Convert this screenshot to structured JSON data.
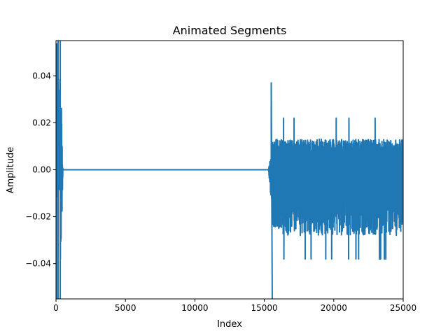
{
  "chart_data": {
    "type": "line",
    "title": "Animated Segments",
    "xlabel": "Index",
    "ylabel": "Amplitude",
    "xlim": [
      0,
      25000
    ],
    "ylim": [
      -0.055,
      0.055
    ],
    "xticks": [
      0,
      5000,
      10000,
      15000,
      20000,
      25000
    ],
    "xtick_labels": [
      "0",
      "5000",
      "10000",
      "15000",
      "20000",
      "25000"
    ],
    "yticks": [
      -0.04,
      -0.02,
      0.0,
      0.02,
      0.04
    ],
    "ytick_labels": [
      "−0.04",
      "−0.02",
      "0.00",
      "0.02",
      "0.04"
    ],
    "grid": false,
    "legend": "none",
    "color": "#1f77b4",
    "series": [
      {
        "segments": [
          {
            "x_start": 0,
            "x_end": 500,
            "kind": "burst",
            "peak_pos": 0.06,
            "peak_neg": -0.06,
            "typical": 0.012
          },
          {
            "x_start": 500,
            "x_end": 15300,
            "kind": "silence",
            "value": 0.0
          },
          {
            "x_start": 15300,
            "x_end": 25000,
            "kind": "noise",
            "peak_pos": 0.037,
            "peak_neg": -0.058,
            "upper_envelope": 0.013,
            "lower_envelope": -0.028
          }
        ]
      }
    ]
  }
}
